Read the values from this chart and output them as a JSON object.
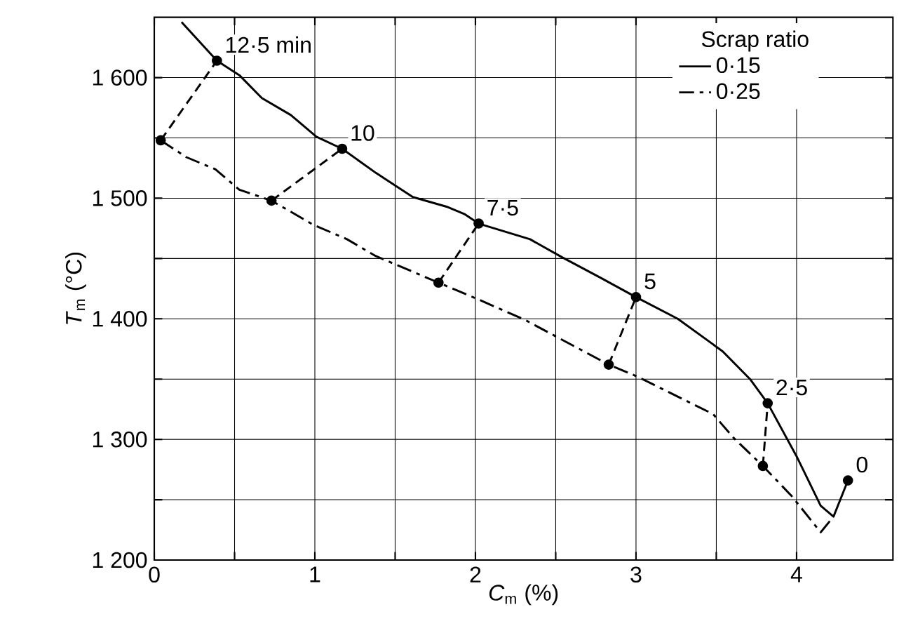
{
  "chart_data": {
    "type": "line",
    "xlabel": "*C*$_{m}$ (%)",
    "ylabel": "*T*$_{m}$ (°C)",
    "legend_title": "Scrap ratio",
    "xlim": [
      0,
      4.6
    ],
    "ylim": [
      1200,
      1650
    ],
    "xticks": [
      0,
      {
        "value": 0.5,
        "label": null
      },
      1,
      {
        "value": 1.5,
        "label": null
      },
      2,
      {
        "value": 2.5,
        "label": null
      },
      3,
      {
        "value": 3.5,
        "label": null
      },
      4
    ],
    "yticks": [
      {
        "value": 1200,
        "label": "1 200"
      },
      {
        "value": 1250,
        "label": null
      },
      {
        "value": 1300,
        "label": "1 300"
      },
      {
        "value": 1350,
        "label": null
      },
      {
        "value": 1400,
        "label": "1 400"
      },
      {
        "value": 1450,
        "label": null
      },
      {
        "value": 1500,
        "label": "1 500"
      },
      {
        "value": 1550,
        "label": null
      },
      {
        "value": 1600,
        "label": "1 600"
      }
    ],
    "grid": true,
    "legend": "top right",
    "series": [
      {
        "name": "0·15",
        "color": "#000000",
        "line_style": "solid",
        "x": [
          0.17,
          0.39,
          0.53,
          0.67,
          0.85,
          1.01,
          1.17,
          1.38,
          1.61,
          1.82,
          1.93,
          2.02,
          2.34,
          2.54,
          2.78,
          3.0,
          3.26,
          3.54,
          3.71,
          3.82,
          4.0,
          4.15,
          4.23,
          4.32
        ],
        "values": [
          1646,
          1614,
          1602,
          1583,
          1569,
          1551,
          1541,
          1521,
          1501,
          1493,
          1487,
          1479,
          1466,
          1451,
          1434,
          1418,
          1400,
          1373,
          1350,
          1330,
          1286,
          1245,
          1236,
          1266
        ]
      },
      {
        "name": "0·25",
        "color": "#000000",
        "line_style": "dashdot",
        "x": [
          0.04,
          0.2,
          0.38,
          0.53,
          0.73,
          0.99,
          1.2,
          1.38,
          1.77,
          2.02,
          2.31,
          2.83,
          3.01,
          3.48,
          3.61,
          3.79,
          3.97,
          4.15,
          4.23
        ],
        "values": [
          1548,
          1534,
          1524,
          1507,
          1498,
          1478,
          1466,
          1452,
          1430,
          1416,
          1399,
          1362,
          1352,
          1321,
          1301,
          1278,
          1253,
          1223,
          1236
        ]
      },
      {
        "type": "line",
        "color": "#000000",
        "line_style": "dashed",
        "x": [
          0.04,
          0.39
        ],
        "values": [
          1548,
          1614
        ]
      },
      {
        "type": "line",
        "color": "#000000",
        "line_style": "dashed",
        "x": [
          0.73,
          1.17
        ],
        "values": [
          1498,
          1541
        ]
      },
      {
        "type": "line",
        "color": "#000000",
        "line_style": "dashed",
        "x": [
          1.77,
          2.02
        ],
        "values": [
          1430,
          1479
        ]
      },
      {
        "type": "line",
        "color": "#000000",
        "line_style": "dashed",
        "x": [
          2.83,
          3.0
        ],
        "values": [
          1362,
          1418
        ]
      },
      {
        "type": "line",
        "color": "#000000",
        "line_style": "dashed",
        "x": [
          3.79,
          3.82
        ],
        "values": [
          1278,
          1330
        ]
      },
      {
        "type": "scatter",
        "color": "#000000",
        "marker": "circle",
        "x": [
          0.04,
          0.39,
          0.73,
          1.17,
          1.77,
          2.02,
          2.83,
          3.0,
          3.79,
          3.82,
          4.32
        ],
        "values": [
          1548,
          1614,
          1498,
          1541,
          1430,
          1479,
          1362,
          1418,
          1278,
          1330,
          1266
        ]
      }
    ],
    "annotations": [
      {
        "text": "12·5 min",
        "x": 0.39,
        "y": 1614
      },
      {
        "text": "10",
        "x": 1.17,
        "y": 1541
      },
      {
        "text": "7·5",
        "x": 2.02,
        "y": 1479
      },
      {
        "text": "5",
        "x": 3.0,
        "y": 1418
      },
      {
        "text": "2·5",
        "x": 3.82,
        "y": 1330
      },
      {
        "text": "0",
        "x": 4.32,
        "y": 1266
      }
    ]
  }
}
